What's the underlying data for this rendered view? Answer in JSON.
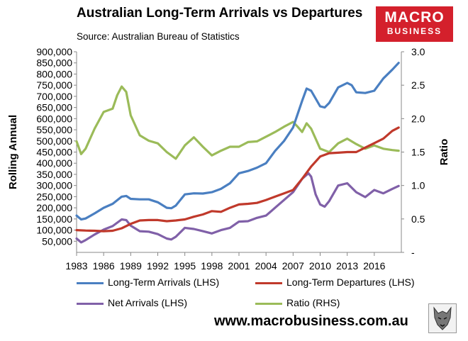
{
  "title": "Australian Long-Term Arrivals vs Departures",
  "subtitle": "Source: Australian Bureau of Statistics",
  "brand": {
    "line1": "MACRO",
    "line2": "BUSINESS",
    "color": "#d4202c"
  },
  "website": "www.macrobusiness.com.au",
  "colors": {
    "arrivals": "#4a7fc1",
    "departures": "#c0392b",
    "net": "#8060a8",
    "ratio": "#9bbb59"
  },
  "legend": [
    {
      "label": "Long-Term Arrivals (LHS)",
      "series": "arrivals"
    },
    {
      "label": "Long-Term Departures (LHS)",
      "series": "departures"
    },
    {
      "label": "Net Arrivals (LHS)",
      "series": "net"
    },
    {
      "label": "Ratio (RHS)",
      "series": "ratio"
    }
  ],
  "chart_data": {
    "type": "line",
    "title": "Australian Long-Term Arrivals vs Departures",
    "ylabel": "Rolling Annual",
    "y2label": "Ratio",
    "xlim": [
      1983,
      2019
    ],
    "ylim": [
      0,
      900000
    ],
    "y2lim": [
      0,
      3.0
    ],
    "x_ticks": [
      "1983",
      "1986",
      "1989",
      "1992",
      "1995",
      "1998",
      "2001",
      "2004",
      "2007",
      "2010",
      "2013",
      "2016"
    ],
    "y_ticks": [
      "50,000",
      "100,000",
      "150,000",
      "200,000",
      "250,000",
      "300,000",
      "350,000",
      "400,000",
      "450,000",
      "500,000",
      "550,000",
      "600,000",
      "650,000",
      "700,000",
      "750,000",
      "800,000",
      "850,000",
      "900,000"
    ],
    "y2_ticks": [
      "-",
      "0.5",
      "1.0",
      "1.5",
      "2.0",
      "2.5",
      "3.0"
    ],
    "series": [
      {
        "name": "Long-Term Arrivals (LHS)",
        "key": "arrivals",
        "axis": "left",
        "x": [
          1983,
          1983.5,
          1984,
          1985,
          1986,
          1987,
          1988,
          1988.5,
          1989,
          1990,
          1991,
          1992,
          1993,
          1993.5,
          1994,
          1995,
          1996,
          1997,
          1998,
          1999,
          2000,
          2001,
          2002,
          2003,
          2004,
          2005,
          2006,
          2007,
          2008,
          2008.5,
          2009,
          2010,
          2010.5,
          2011,
          2012,
          2013,
          2013.5,
          2014,
          2015,
          2016,
          2017,
          2018,
          2018.7
        ],
        "values": [
          165000,
          148000,
          152000,
          175000,
          200000,
          218000,
          250000,
          253000,
          240000,
          238000,
          238000,
          225000,
          200000,
          198000,
          210000,
          260000,
          265000,
          264000,
          270000,
          285000,
          310000,
          355000,
          365000,
          380000,
          400000,
          455000,
          500000,
          560000,
          680000,
          735000,
          725000,
          655000,
          650000,
          670000,
          740000,
          760000,
          750000,
          718000,
          715000,
          725000,
          780000,
          820000,
          850000
        ]
      },
      {
        "name": "Long-Term Departures (LHS)",
        "key": "departures",
        "axis": "left",
        "x": [
          1983,
          1984,
          1985,
          1986,
          1987,
          1988,
          1989,
          1990,
          1991,
          1992,
          1993,
          1994,
          1995,
          1996,
          1997,
          1998,
          1999,
          2000,
          2001,
          2002,
          2003,
          2004,
          2005,
          2006,
          2007,
          2008,
          2009,
          2010,
          2011,
          2012,
          2013,
          2014,
          2015,
          2016,
          2017,
          2018,
          2018.7
        ],
        "values": [
          100000,
          98000,
          97000,
          95000,
          97000,
          108000,
          128000,
          143000,
          145000,
          145000,
          140000,
          143000,
          148000,
          160000,
          170000,
          185000,
          182000,
          200000,
          215000,
          218000,
          222000,
          235000,
          250000,
          265000,
          280000,
          330000,
          385000,
          430000,
          445000,
          447000,
          450000,
          450000,
          470000,
          490000,
          510000,
          545000,
          560000
        ]
      },
      {
        "name": "Net Arrivals (LHS)",
        "key": "net",
        "axis": "left",
        "x": [
          1983,
          1983.5,
          1984,
          1985,
          1986,
          1987,
          1988,
          1988.5,
          1989,
          1990,
          1991,
          1992,
          1993,
          1993.5,
          1994,
          1995,
          1996,
          1997,
          1998,
          1999,
          2000,
          2001,
          2002,
          2003,
          2004,
          2005,
          2006,
          2007,
          2008,
          2008.7,
          2009,
          2009.5,
          2010,
          2010.5,
          2011,
          2012,
          2013,
          2014,
          2015,
          2016,
          2017,
          2018,
          2018.7
        ],
        "values": [
          62000,
          45000,
          55000,
          80000,
          102000,
          118000,
          148000,
          145000,
          120000,
          95000,
          93000,
          82000,
          62000,
          58000,
          70000,
          110000,
          105000,
          95000,
          85000,
          100000,
          110000,
          138000,
          140000,
          155000,
          165000,
          200000,
          235000,
          270000,
          330000,
          355000,
          340000,
          260000,
          215000,
          205000,
          230000,
          300000,
          310000,
          270000,
          248000,
          280000,
          265000,
          285000,
          298000
        ]
      },
      {
        "name": "Ratio (RHS)",
        "key": "ratio",
        "axis": "right",
        "x": [
          1983,
          1983.5,
          1984,
          1985,
          1986,
          1987,
          1987.5,
          1988,
          1988.5,
          1989,
          1990,
          1991,
          1992,
          1993,
          1994,
          1995,
          1996,
          1997,
          1998,
          1999,
          2000,
          2001,
          2002,
          2003,
          2004,
          2005,
          2006,
          2007,
          2007.5,
          2008,
          2008.5,
          2009,
          2010,
          2011,
          2012,
          2013,
          2014,
          2015,
          2016,
          2017,
          2018,
          2018.7
        ],
        "values": [
          1.66,
          1.47,
          1.55,
          1.85,
          2.1,
          2.15,
          2.35,
          2.48,
          2.4,
          2.05,
          1.75,
          1.67,
          1.63,
          1.5,
          1.4,
          1.6,
          1.72,
          1.58,
          1.45,
          1.52,
          1.58,
          1.58,
          1.65,
          1.66,
          1.73,
          1.8,
          1.88,
          1.95,
          1.88,
          1.8,
          1.93,
          1.85,
          1.55,
          1.5,
          1.63,
          1.7,
          1.62,
          1.55,
          1.6,
          1.55,
          1.53,
          1.52
        ]
      }
    ]
  }
}
